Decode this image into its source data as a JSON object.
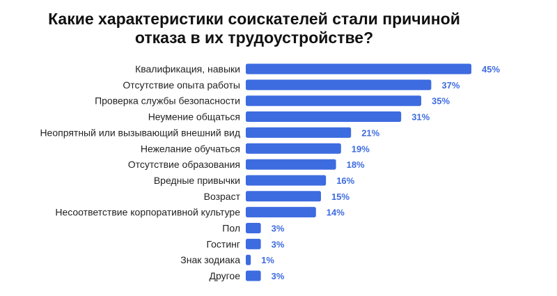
{
  "chart_data": {
    "type": "bar",
    "orientation": "horizontal",
    "title_lines": [
      "Какие характеристики соискателей стали причиной",
      "отказа в их трудоустройстве?"
    ],
    "categories": [
      "Квалификация, навыки",
      "Отсутствие опыта работы",
      "Проверка службы безопасности",
      "Неумение общаться",
      "Неопрятный или вызывающий внешний вид",
      "Нежелание обучаться",
      "Отсутствие образования",
      "Вредные привычки",
      "Возраст",
      "Несоответствие корпоративной культуре",
      "Пол",
      "Гостинг",
      "Знак зодиака",
      "Другое"
    ],
    "values": [
      45,
      37,
      35,
      31,
      21,
      19,
      18,
      16,
      15,
      14,
      3,
      3,
      1,
      3
    ],
    "data_labels": [
      "45%",
      "37%",
      "35%",
      "31%",
      "21%",
      "19%",
      "18%",
      "16%",
      "15%",
      "14%",
      "3%",
      "3%",
      "1%",
      "3%"
    ],
    "unit": "%",
    "xlim": [
      0,
      45
    ],
    "grid": false,
    "legend": "none",
    "colors": {
      "bar": "#3d6be0",
      "value_label": "#3d6be0",
      "category_label": "#222222",
      "title": "#111111"
    }
  }
}
